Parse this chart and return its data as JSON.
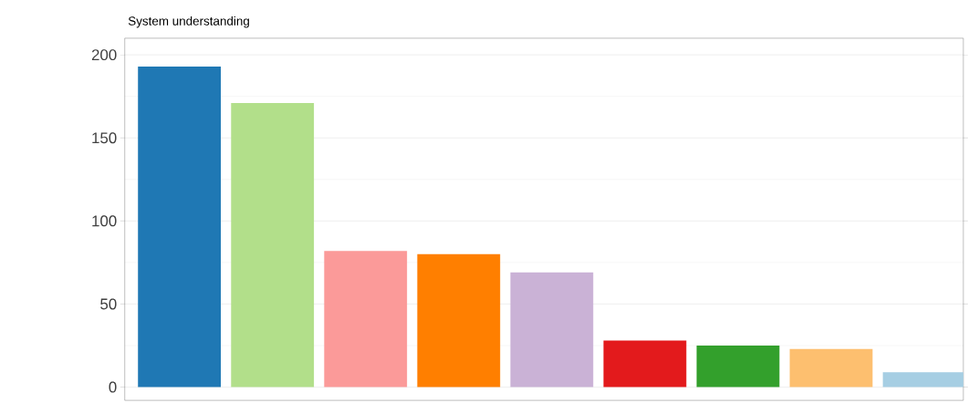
{
  "chart_data": {
    "type": "bar",
    "title": "System understanding",
    "categories": [
      null,
      null,
      null,
      null,
      null,
      null,
      null,
      null,
      null
    ],
    "values": [
      193,
      171,
      82,
      80,
      69,
      28,
      25,
      23,
      9
    ],
    "colors": [
      "#1f78b4",
      "#b2df8a",
      "#fb9a99",
      "#ff7f00",
      "#cab2d6",
      "#e31a1c",
      "#33a02c",
      "#fdbf6f",
      "#a6cee3"
    ],
    "ylim": [
      -8,
      210
    ],
    "yticks": [
      0,
      50,
      100,
      150,
      200
    ],
    "grid": "y",
    "tick_labels": "y"
  }
}
